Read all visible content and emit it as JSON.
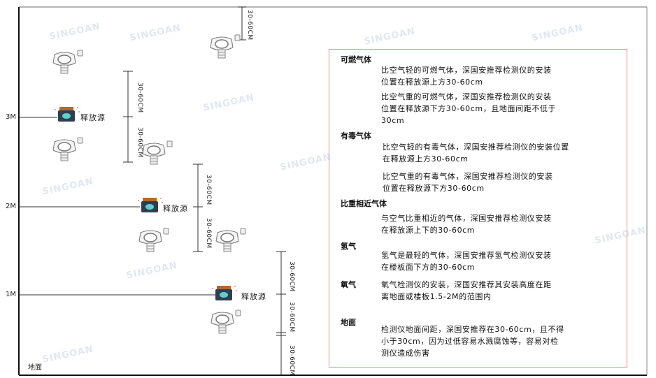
{
  "watermark": "SINGOAN 深国安",
  "levels": {
    "l3": "3M",
    "l2": "2M",
    "l1": "1M",
    "ground": "地面"
  },
  "source_label": "释放源",
  "dimension_label": "30-60CM",
  "colors": {
    "panel_border": "#e98a8a",
    "source_body": "#2f3f52",
    "source_cap": "#b36a2c",
    "source_face": "#5fd0c8"
  },
  "panel": {
    "sections": [
      {
        "title": "可燃气体",
        "paras": [
          [
            "比空气轻的可燃气体，深国安推荐检测仪的安装",
            "位置在释放源上方30-60cm"
          ],
          [
            "比空气重的可燃气体，深国安推荐检测仪的安装",
            "位置在释放源下方30-60cm，且地面间距不低于",
            "30cm"
          ]
        ]
      },
      {
        "title": "有毒气体",
        "paras": [
          [
            "比空气轻的有毒气体，深国安推荐检测仪的安装位置",
            "在释放源上方30-60cm"
          ],
          [
            "比空气重的有毒气体，深国安推荐检测仪的安装",
            "位置在释放源下方30-60cm"
          ]
        ]
      },
      {
        "title": "比重相近气体",
        "paras": [
          [
            "与空气比重相近的气体，深国安推荐检测仪安装",
            "在释放源上下的30-60cm"
          ]
        ]
      },
      {
        "title": "氢气",
        "paras": [
          [
            "氢气是最轻的气体，深国安推荐氢气检测仪安装",
            "在楼板面下方的30-60cm"
          ]
        ]
      },
      {
        "title": "氧气",
        "paras": [
          [
            "氧气检测仪的安装，深国安推荐其安装高度在距",
            "离地面或楼板1.5-2M的范围内"
          ]
        ]
      },
      {
        "title": "地面",
        "paras": [
          [
            "检测仪地面间距，深国安推荐在30-60cm，且不得",
            "小于30cm，因为过低容易水溅腐蚀等，容易对检",
            "测仪造成伤害"
          ]
        ]
      }
    ]
  }
}
